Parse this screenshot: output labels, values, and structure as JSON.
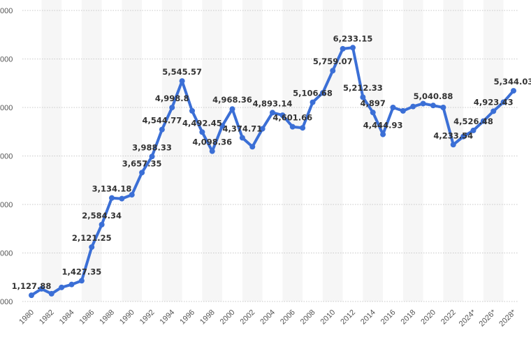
{
  "chart_data": {
    "type": "line",
    "title": "",
    "xlabel": "",
    "ylabel": "",
    "ylim": [
      1000,
      7000
    ],
    "grid": true,
    "color": "#3b6fd6",
    "yticks": [
      {
        "v": 7000,
        "t": "000"
      },
      {
        "v": 6000,
        "t": "000"
      },
      {
        "v": 5000,
        "t": "000"
      },
      {
        "v": 4000,
        "t": "000"
      },
      {
        "v": 3000,
        "t": "000"
      },
      {
        "v": 2000,
        "t": "000"
      },
      {
        "v": 1000,
        "t": "000"
      }
    ],
    "x": [
      "1980",
      "1981",
      "1982",
      "1983",
      "1984",
      "1985",
      "1986",
      "1987",
      "1988",
      "1989",
      "1990",
      "1991",
      "1992",
      "1993",
      "1994",
      "1995",
      "1996",
      "1997",
      "1998",
      "1999",
      "2000",
      "2001",
      "2002",
      "2003",
      "2004",
      "2005",
      "2006",
      "2007",
      "2008",
      "2009",
      "2010",
      "2011",
      "2012",
      "2013",
      "2014",
      "2015",
      "2016",
      "2017",
      "2018",
      "2019",
      "2020",
      "2021",
      "2022",
      "2023",
      "2024*",
      "2025*",
      "2026*",
      "2027*",
      "2028*"
    ],
    "xticks": [
      "1980",
      "1982",
      "1984",
      "1986",
      "1988",
      "1990",
      "1992",
      "1994",
      "1996",
      "1998",
      "2000",
      "2002",
      "2004",
      "2006",
      "2008",
      "2010",
      "2012",
      "2014",
      "2016",
      "2018",
      "2020",
      "2022",
      "2024*",
      "2026*",
      "2028*"
    ],
    "values": [
      1127.88,
      1260,
      1160,
      1290,
      1350,
      1427.35,
      2121.25,
      2584.34,
      3134.18,
      3120,
      3200,
      3657.35,
      3988.33,
      4544.77,
      4998.8,
      5545.57,
      4930,
      4492.45,
      4098.36,
      4620,
      4968.36,
      4374.71,
      4190,
      4560,
      4893.14,
      4840,
      4601.66,
      4580,
      5106.68,
      5300,
      5759.07,
      6210,
      6233.15,
      5212.33,
      4897,
      4444.93,
      5000,
      4930,
      5020,
      5080,
      5040.88,
      5000,
      4233.54,
      4400,
      4526.48,
      4720,
      4923.43,
      5110,
      5344.03
    ],
    "labels": [
      {
        "i": 0,
        "t": "1,127.88"
      },
      {
        "i": 5,
        "t": "1,427.35"
      },
      {
        "i": 6,
        "t": "2,121.25"
      },
      {
        "i": 7,
        "t": "2,584.34"
      },
      {
        "i": 8,
        "t": "3,134.18"
      },
      {
        "i": 11,
        "t": "3,657.35"
      },
      {
        "i": 12,
        "t": "3,988.33"
      },
      {
        "i": 13,
        "t": "4,544.77"
      },
      {
        "i": 14,
        "t": "4,998.8"
      },
      {
        "i": 15,
        "t": "5,545.57"
      },
      {
        "i": 17,
        "t": "4,492.45"
      },
      {
        "i": 18,
        "t": "4,098.36"
      },
      {
        "i": 20,
        "t": "4,968.36"
      },
      {
        "i": 21,
        "t": "4,374.71"
      },
      {
        "i": 24,
        "t": "4,893.14"
      },
      {
        "i": 26,
        "t": "4,601.66"
      },
      {
        "i": 28,
        "t": "5,106.68"
      },
      {
        "i": 30,
        "t": "5,759.07"
      },
      {
        "i": 32,
        "t": "6,233.15"
      },
      {
        "i": 33,
        "t": "5,212.33"
      },
      {
        "i": 34,
        "t": "4,897"
      },
      {
        "i": 35,
        "t": "4,444.93"
      },
      {
        "i": 40,
        "t": "5,040.88"
      },
      {
        "i": 42,
        "t": "4,233.54"
      },
      {
        "i": 44,
        "t": "4,526.48"
      },
      {
        "i": 46,
        "t": "4,923.43"
      },
      {
        "i": 48,
        "t": "5,344.03"
      }
    ]
  }
}
